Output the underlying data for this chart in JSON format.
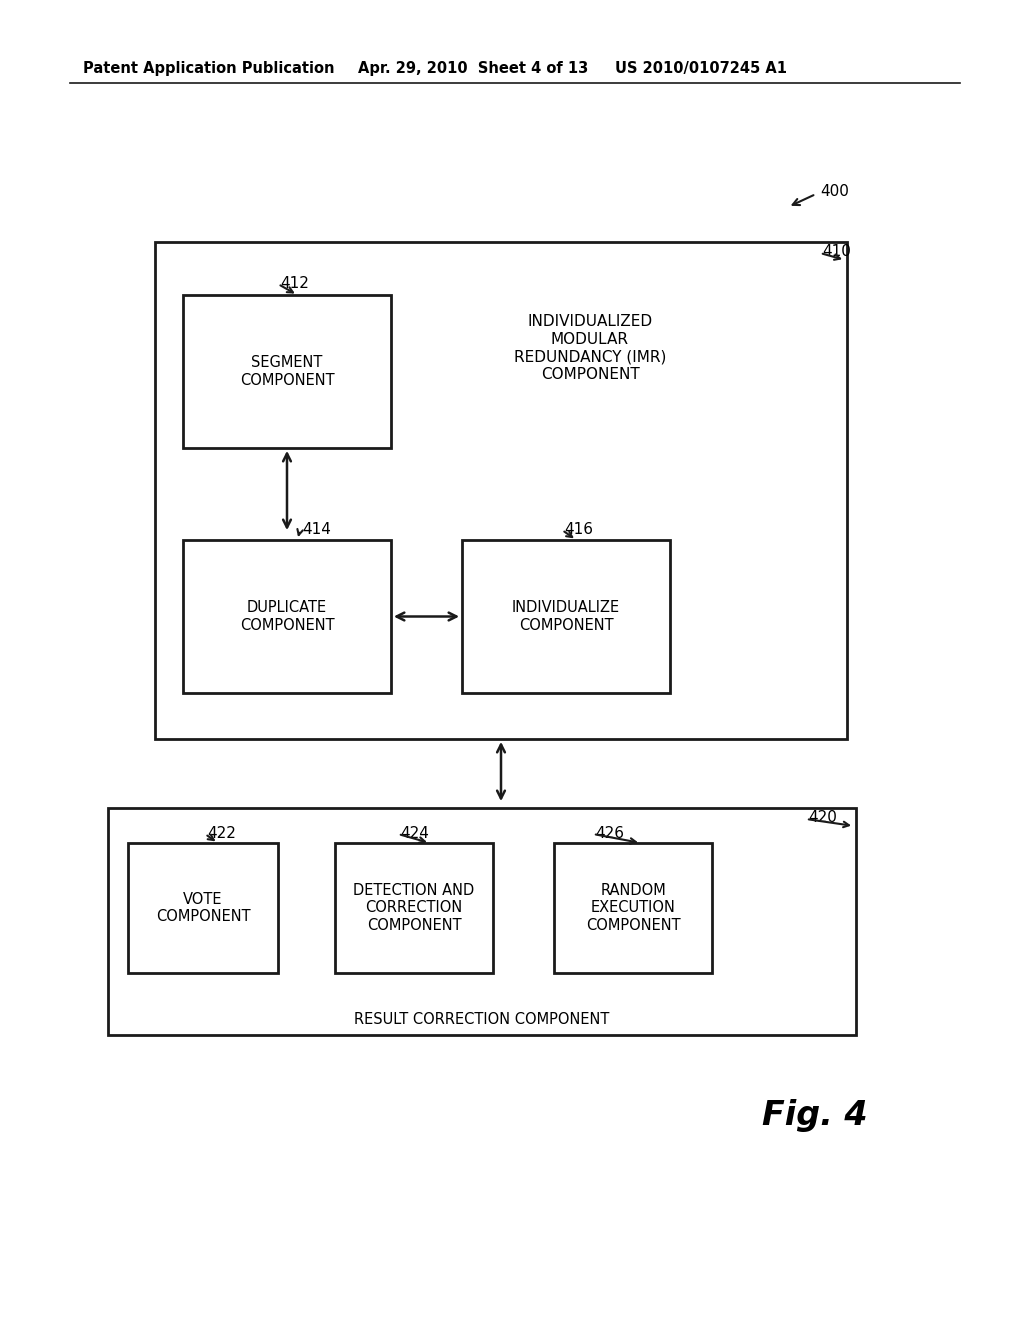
{
  "bg_color": "#ffffff",
  "header_left": "Patent Application Publication",
  "header_mid": "Apr. 29, 2010  Sheet 4 of 13",
  "header_right": "US 2010/0107245 A1",
  "fig_label": "Fig. 4",
  "label_400": "400",
  "label_410": "410",
  "label_412": "412",
  "label_414": "414",
  "label_416": "416",
  "label_420": "420",
  "label_422": "422",
  "label_424": "424",
  "label_426": "426",
  "box410_label": "INDIVIDUALIZED\nMODULAR\nREDUNDANCY (IMR)\nCOMPONENT",
  "box412_label": "SEGMENT\nCOMPONENT",
  "box414_label": "DUPLICATE\nCOMPONENT",
  "box416_label": "INDIVIDUALIZE\nCOMPONENT",
  "box420_label": "RESULT CORRECTION COMPONENT",
  "box422_label": "VOTE\nCOMPONENT",
  "box424_label": "DETECTION AND\nCORRECTION\nCOMPONENT",
  "box426_label": "RANDOM\nEXECUTION\nCOMPONENT"
}
